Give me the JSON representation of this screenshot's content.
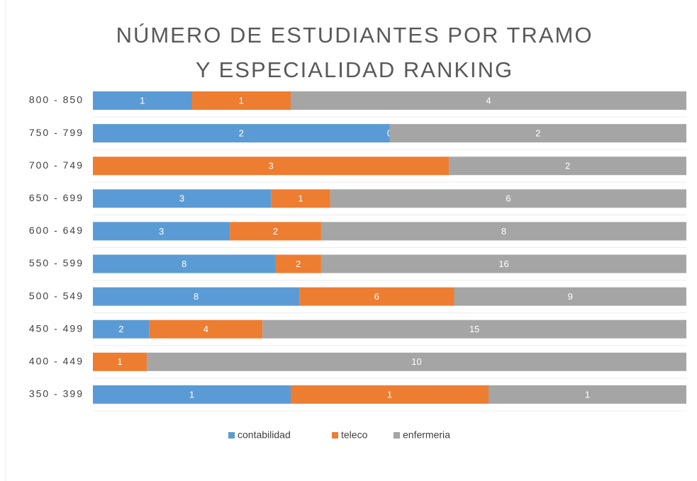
{
  "chart_data": {
    "type": "bar",
    "orientation": "horizontal",
    "stacking": "percent",
    "title": [
      "NÚMERO DE ESTUDIANTES POR TRAMO",
      "Y ESPECIALIDAD  RANKING"
    ],
    "categories": [
      "800 - 850",
      "750 - 799",
      "700 - 749",
      "650 - 699",
      "600 - 649",
      "550 - 599",
      "500 - 549",
      "450 - 499",
      "400 - 449",
      "350 - 399"
    ],
    "series": [
      {
        "name": "contabilidad",
        "color": "#5b9bd5",
        "values": [
          1,
          2,
          0,
          3,
          3,
          8,
          8,
          2,
          0,
          1
        ]
      },
      {
        "name": "teleco",
        "color": "#ed7d31",
        "values": [
          1,
          0,
          3,
          1,
          2,
          2,
          6,
          4,
          1,
          1
        ]
      },
      {
        "name": "enfermeria",
        "color": "#a5a5a5",
        "values": [
          4,
          2,
          2,
          6,
          8,
          16,
          9,
          15,
          10,
          1
        ]
      }
    ],
    "legend": "bottom"
  }
}
